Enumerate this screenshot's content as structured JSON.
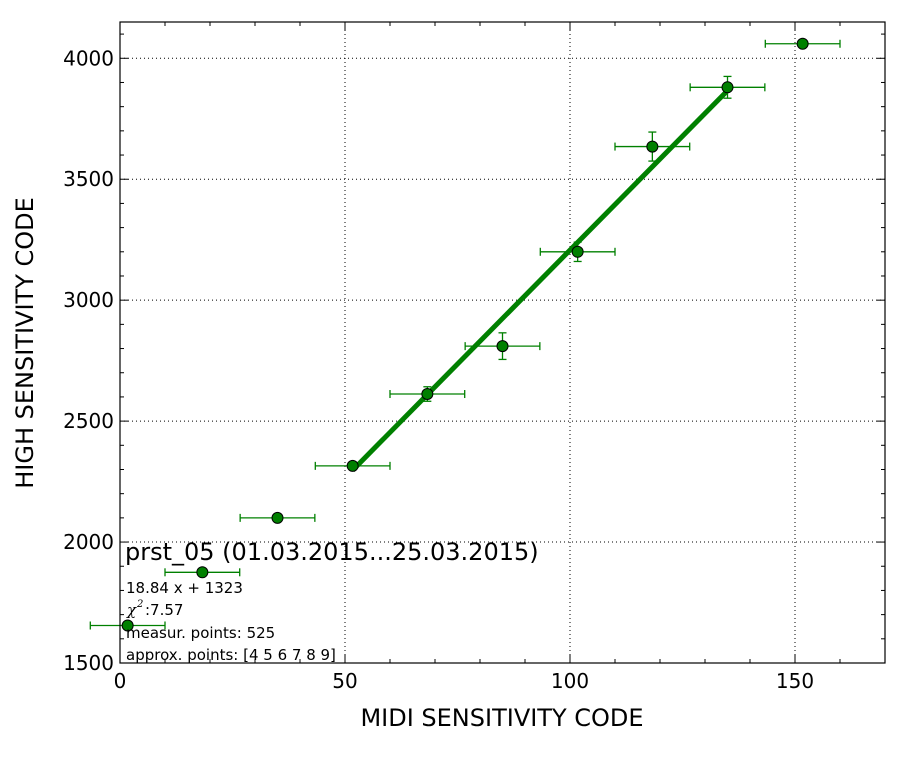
{
  "chart_data": {
    "type": "scatter",
    "xlabel": "MIDI SENSITIVITY CODE",
    "ylabel": "HIGH SENSITIVITY CODE",
    "xlim": [
      0,
      170
    ],
    "ylim": [
      1500,
      4150
    ],
    "xticks": [
      0,
      50,
      100,
      150
    ],
    "yticks": [
      1500,
      2000,
      2500,
      3000,
      3500,
      4000
    ],
    "grid": true,
    "series": [
      {
        "type": "scatter",
        "color": "#008000",
        "points": [
          {
            "x": 1.7,
            "y": 1655,
            "xerr": 8.3,
            "yerr": 8
          },
          {
            "x": 18.3,
            "y": 1875,
            "xerr": 8.3,
            "yerr": 8
          },
          {
            "x": 35.0,
            "y": 2100,
            "xerr": 8.3,
            "yerr": 10
          },
          {
            "x": 51.7,
            "y": 2315,
            "xerr": 8.3,
            "yerr": 15
          },
          {
            "x": 68.3,
            "y": 2612,
            "xerr": 8.3,
            "yerr": 30
          },
          {
            "x": 85.0,
            "y": 2810,
            "xerr": 8.3,
            "yerr": 55
          },
          {
            "x": 101.7,
            "y": 3200,
            "xerr": 8.3,
            "yerr": 40
          },
          {
            "x": 118.3,
            "y": 3635,
            "xerr": 8.3,
            "yerr": 60
          },
          {
            "x": 135.0,
            "y": 3880,
            "xerr": 8.3,
            "yerr": 45
          },
          {
            "x": 151.7,
            "y": 4060,
            "xerr": 8.3,
            "yerr": 8
          }
        ]
      },
      {
        "type": "line",
        "color": "#008000",
        "slope": 18.84,
        "intercept": 1323,
        "x_range": [
          51.7,
          135.0
        ]
      }
    ],
    "annotations": {
      "title": "prst_05 (01.03.2015...25.03.2015)",
      "equation": "18.84 x + 1323",
      "chi_symbol": "χ",
      "chi_exp": "2",
      "chi_value": " :7.57",
      "measur_points": "measur. points: 525",
      "approx_points": "approx. points: [4 5 6 7 8 9]"
    }
  }
}
